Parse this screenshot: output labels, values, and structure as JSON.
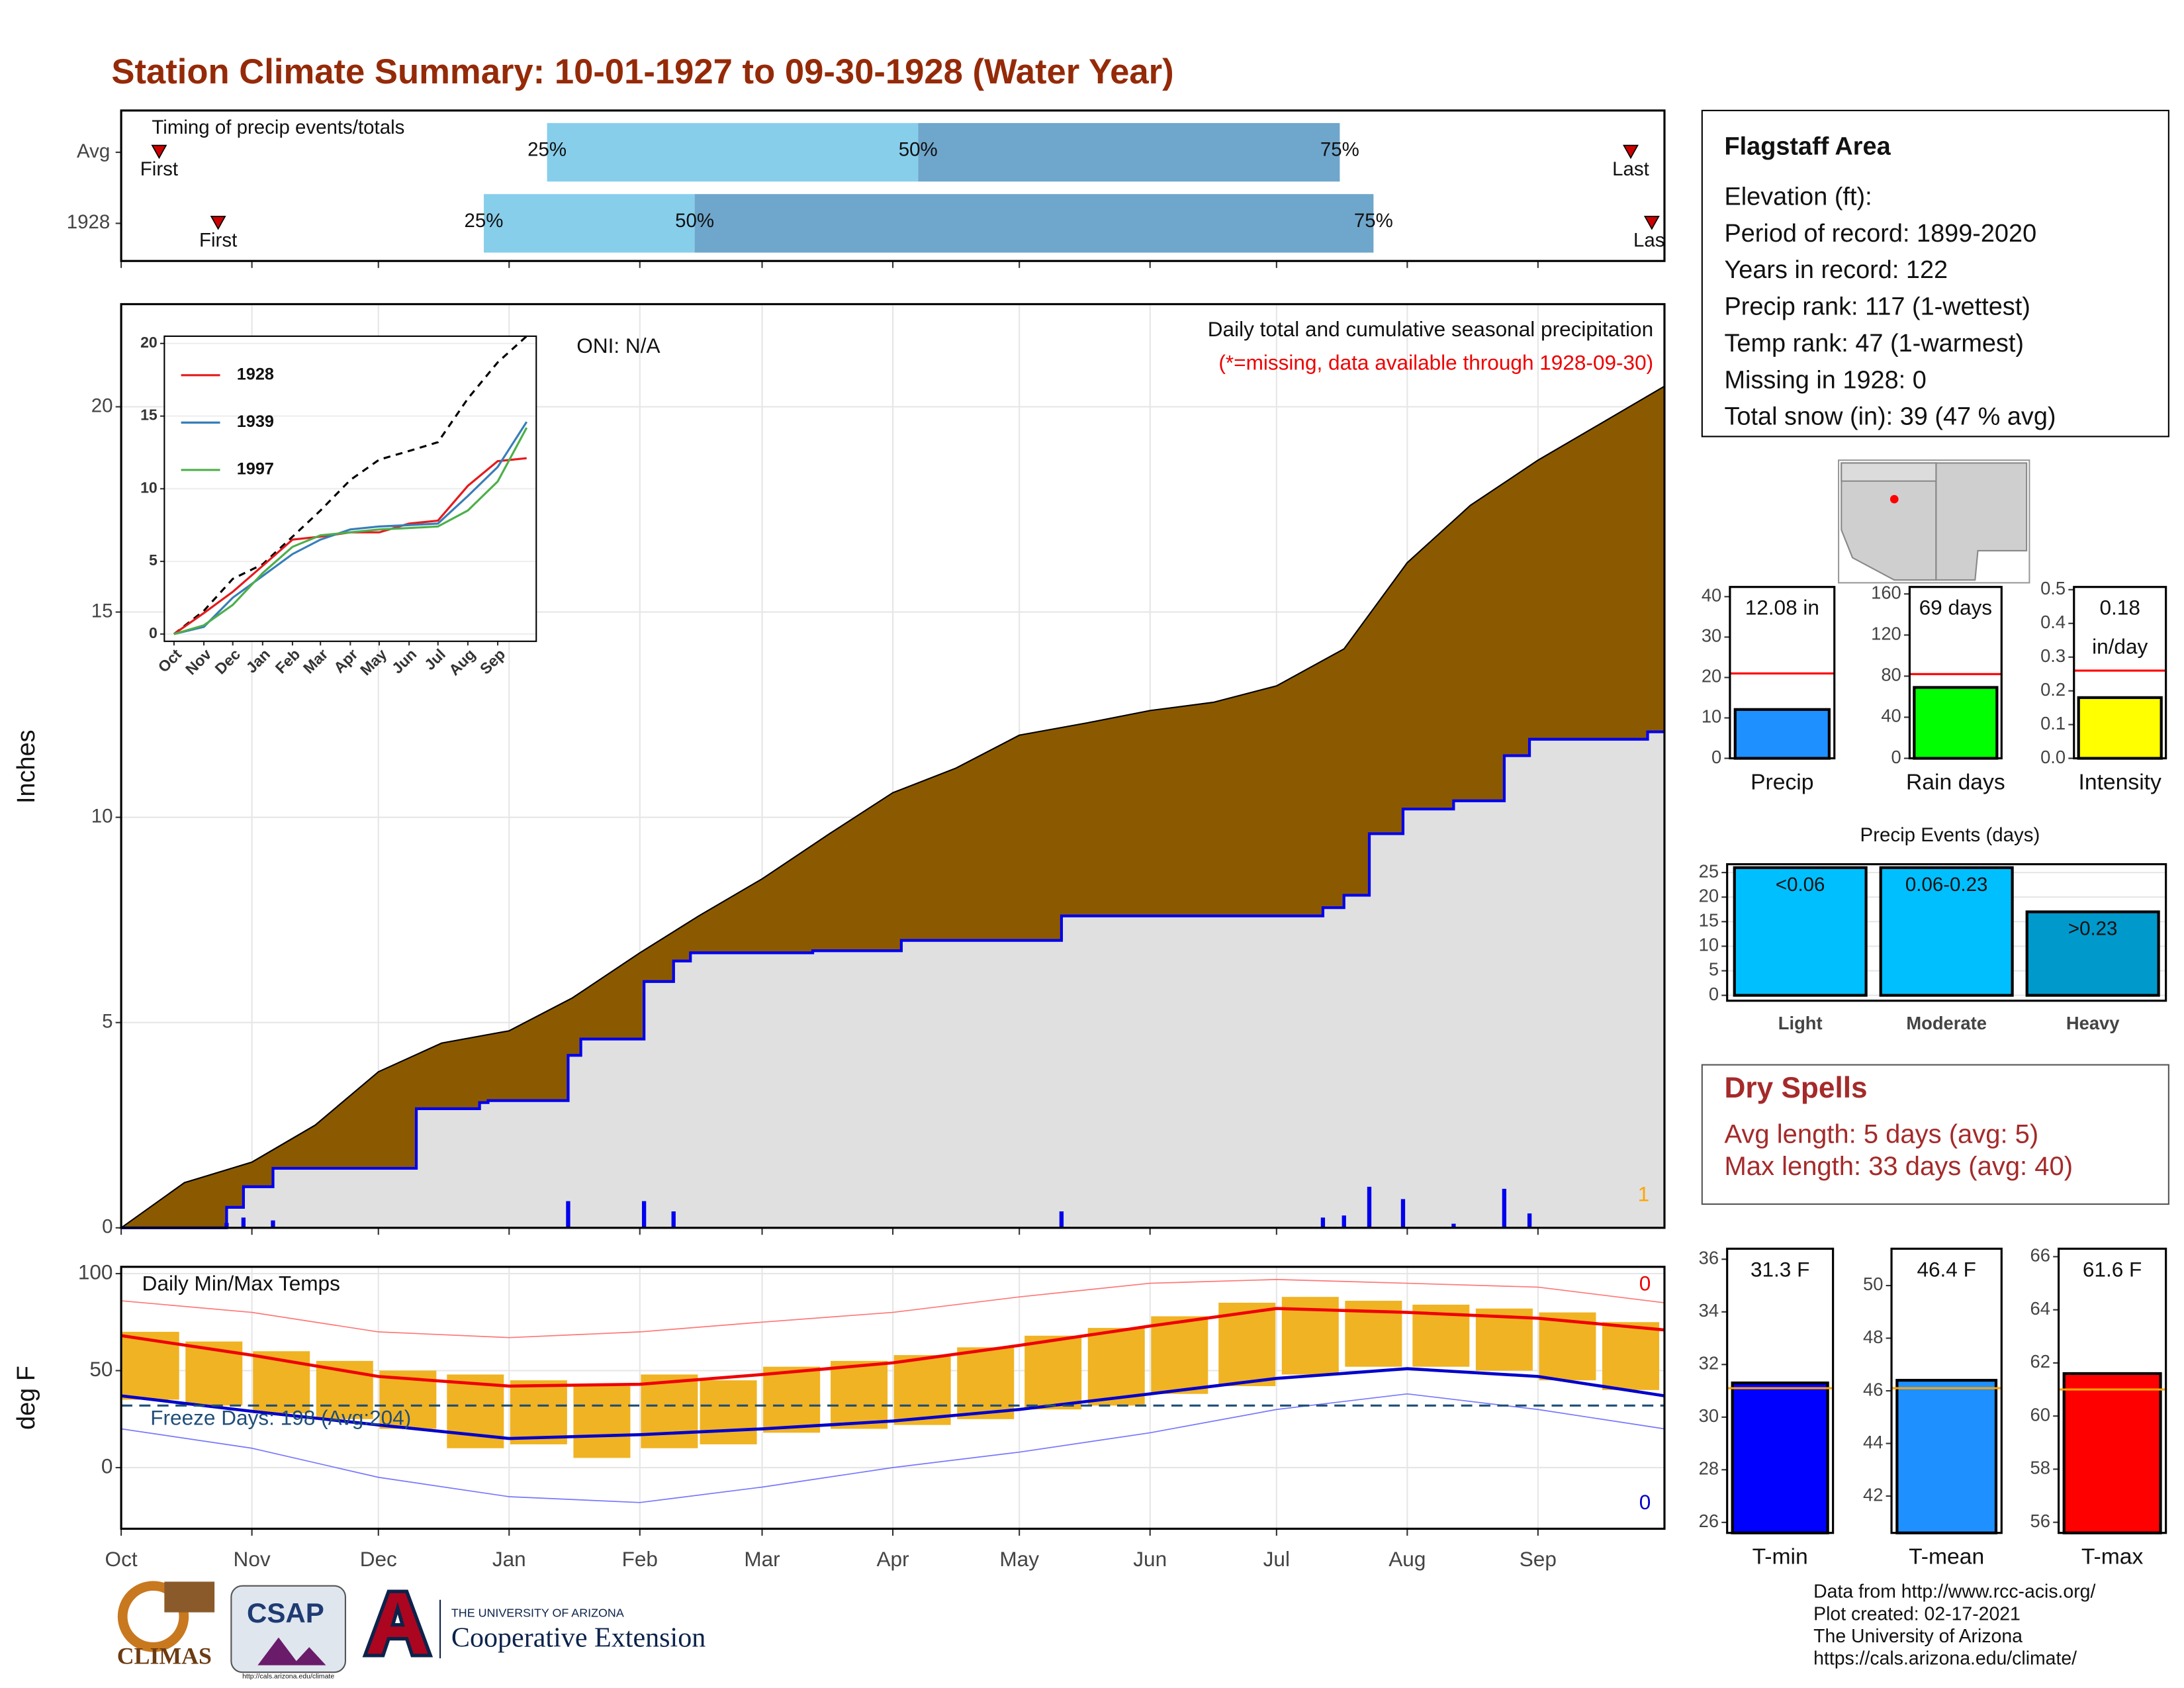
{
  "title": "Station Climate Summary: 10-01-1927 to 09-30-1928 (Water Year)",
  "chart_data": [
    {
      "type": "timeline",
      "title": "Timing of precip events/totals",
      "labels": {
        "first": "First",
        "last": "Last",
        "p25": "25%",
        "p50": "50%",
        "p75": "75%"
      },
      "rows": [
        {
          "name": "Avg",
          "first": 9,
          "p25": 101,
          "p50": 189,
          "p75": 289,
          "last": 358
        },
        {
          "name": "1928",
          "first": 23,
          "p25": 86,
          "p50": 136,
          "p75": 297,
          "last": 363
        }
      ],
      "xlim": [
        0,
        366
      ],
      "colors": {
        "lower": "#87ceeb",
        "upper": "#6fa6cc",
        "marker": "#cc0000"
      }
    },
    {
      "type": "area",
      "title": "Daily total and cumulative seasonal precipitation",
      "subtitle": "(*=missing, data available through 1928-09-30)",
      "note": "ONI: N/A",
      "corner_note": "1",
      "ylabel": "Inches",
      "xlim": [
        0,
        366
      ],
      "ylim": [
        0,
        22.5
      ],
      "yticks": [
        0,
        5,
        10,
        15,
        20
      ],
      "grid": true,
      "xticks": [
        {
          "value": 0,
          "label": "Oct"
        },
        {
          "value": 31,
          "label": "Nov"
        },
        {
          "value": 61,
          "label": "Dec"
        },
        {
          "value": 92,
          "label": "Jan"
        },
        {
          "value": 123,
          "label": "Feb"
        },
        {
          "value": 152,
          "label": "Mar"
        },
        {
          "value": 183,
          "label": "Apr"
        },
        {
          "value": 213,
          "label": "May"
        },
        {
          "value": 244,
          "label": "Jun"
        },
        {
          "value": 274,
          "label": "Jul"
        },
        {
          "value": 305,
          "label": "Aug"
        },
        {
          "value": 336,
          "label": "Sep"
        }
      ],
      "avg": {
        "color": "#8b5a00",
        "x": [
          0,
          15,
          31,
          46,
          61,
          76,
          92,
          107,
          123,
          137,
          152,
          168,
          183,
          198,
          213,
          229,
          244,
          259,
          274,
          290,
          305,
          320,
          336,
          351,
          366
        ],
        "values": [
          0,
          1.1,
          1.6,
          2.5,
          3.8,
          4.5,
          4.8,
          5.6,
          6.7,
          7.6,
          8.5,
          9.6,
          10.6,
          11.2,
          12.0,
          12.3,
          12.6,
          12.8,
          13.2,
          14.1,
          16.2,
          17.6,
          18.7,
          19.6,
          20.5
        ]
      },
      "observed": {
        "color": "#0000ee",
        "fill": "#e0e0e0",
        "x": [
          0,
          25,
          29,
          36,
          70,
          85,
          87,
          106,
          109,
          124,
          131,
          135,
          164,
          185,
          223,
          285,
          290,
          296,
          304,
          316,
          328,
          334,
          362,
          366
        ],
        "values": [
          0,
          0.5,
          1.0,
          1.45,
          2.9,
          3.05,
          3.1,
          4.2,
          4.6,
          6.0,
          6.5,
          6.7,
          6.75,
          7.0,
          7.6,
          7.8,
          8.1,
          9.6,
          10.2,
          10.4,
          11.5,
          11.9,
          12.08,
          12.08
        ]
      },
      "daily": {
        "color": "#0000ee",
        "x": [
          25,
          29,
          36,
          106,
          124,
          131,
          223,
          285,
          290,
          296,
          304,
          316,
          328,
          334
        ],
        "values": [
          0.12,
          0.25,
          0.18,
          0.65,
          0.65,
          0.4,
          0.4,
          0.25,
          0.3,
          1.0,
          0.7,
          0.1,
          0.95,
          0.35
        ]
      }
    },
    {
      "type": "line",
      "xlim": [
        -10,
        376
      ],
      "ylim": [
        -0.5,
        20.5
      ],
      "yticks": [
        0,
        5,
        10,
        15,
        20
      ],
      "xticks": [
        {
          "value": 0,
          "label": "Oct"
        },
        {
          "value": 31,
          "label": "Nov"
        },
        {
          "value": 61,
          "label": "Dec"
        },
        {
          "value": 92,
          "label": "Jan"
        },
        {
          "value": 123,
          "label": "Feb"
        },
        {
          "value": 152,
          "label": "Mar"
        },
        {
          "value": 183,
          "label": "Apr"
        },
        {
          "value": 213,
          "label": "May"
        },
        {
          "value": 244,
          "label": "Jun"
        },
        {
          "value": 274,
          "label": "Jul"
        },
        {
          "value": 305,
          "label": "Aug"
        },
        {
          "value": 336,
          "label": "Sep"
        }
      ],
      "x": [
        0,
        31,
        61,
        92,
        123,
        152,
        183,
        213,
        244,
        274,
        305,
        336,
        366
      ],
      "avg": [
        0,
        1.6,
        3.8,
        4.8,
        6.7,
        8.5,
        10.6,
        12.0,
        12.6,
        13.2,
        16.2,
        18.7,
        20.5
      ],
      "series": [
        {
          "name": "1928",
          "color": "#e41a1c",
          "values": [
            0,
            1.45,
            2.9,
            4.7,
            6.5,
            6.7,
            7.0,
            7.0,
            7.6,
            7.8,
            10.2,
            11.9,
            12.1
          ]
        },
        {
          "name": "1939",
          "color": "#377eb8",
          "values": [
            0,
            0.5,
            2.5,
            4.0,
            5.5,
            6.5,
            7.2,
            7.4,
            7.5,
            7.6,
            9.5,
            11.5,
            14.6
          ]
        },
        {
          "name": "1997",
          "color": "#4daf4a",
          "values": [
            0,
            0.6,
            2.0,
            4.2,
            6.0,
            6.8,
            7.0,
            7.2,
            7.3,
            7.4,
            8.5,
            10.5,
            14.2
          ]
        }
      ]
    },
    {
      "type": "range",
      "title": "Daily Min/Max Temps",
      "ylabel": "deg F",
      "freeze_label": "Freeze Days: 198 (Avg:204)",
      "freeze": 32,
      "record_high_count": 0,
      "record_low_count": 0,
      "xlim": [
        0,
        366
      ],
      "ylim": [
        -31.5,
        103.5
      ],
      "yticks": [
        0,
        50,
        100
      ],
      "grid": true,
      "xticks": [
        {
          "value": 0,
          "label": "Oct"
        },
        {
          "value": 31,
          "label": "Nov"
        },
        {
          "value": 61,
          "label": "Dec"
        },
        {
          "value": 92,
          "label": "Jan"
        },
        {
          "value": 123,
          "label": "Feb"
        },
        {
          "value": 152,
          "label": "Mar"
        },
        {
          "value": 183,
          "label": "Apr"
        },
        {
          "value": 213,
          "label": "May"
        },
        {
          "value": 244,
          "label": "Jun"
        },
        {
          "value": 274,
          "label": "Jul"
        },
        {
          "value": 305,
          "label": "Aug"
        },
        {
          "value": 336,
          "label": "Sep"
        }
      ],
      "x": [
        0,
        31,
        61,
        92,
        123,
        152,
        183,
        213,
        244,
        274,
        305,
        336,
        366
      ],
      "lines": [
        {
          "color": "#ff7777",
          "width": 0.8,
          "values": [
            86,
            80,
            70,
            67,
            70,
            75,
            80,
            88,
            95,
            97,
            95,
            93,
            85
          ]
        },
        {
          "color": "#ee0000",
          "width": 2.2,
          "values": [
            68,
            58,
            47,
            42,
            43,
            48,
            54,
            63,
            73,
            82,
            80,
            77,
            71
          ]
        },
        {
          "color": "#0000cc",
          "width": 2.2,
          "values": [
            37,
            29,
            22,
            15,
            17,
            20,
            24,
            30,
            38,
            46,
            51,
            47,
            37
          ]
        },
        {
          "color": "#7777ff",
          "width": 0.8,
          "values": [
            20,
            10,
            -5,
            -15,
            -18,
            -10,
            0,
            8,
            18,
            30,
            38,
            30,
            20
          ]
        }
      ],
      "daily": {
        "color": "#f0b323",
        "x": [
          7,
          22,
          38,
          53,
          68,
          84,
          99,
          114,
          130,
          144,
          159,
          175,
          190,
          205,
          221,
          236,
          251,
          267,
          282,
          297,
          313,
          328,
          343,
          358
        ],
        "low": [
          35,
          32,
          28,
          25,
          20,
          10,
          12,
          5,
          10,
          12,
          18,
          20,
          22,
          25,
          30,
          32,
          38,
          42,
          48,
          52,
          52,
          50,
          45,
          40
        ],
        "high": [
          70,
          65,
          60,
          55,
          50,
          48,
          45,
          42,
          48,
          45,
          52,
          55,
          58,
          62,
          68,
          72,
          78,
          85,
          88,
          86,
          84,
          82,
          80,
          75
        ]
      }
    },
    {
      "type": "bar",
      "categories": [
        "Precip"
      ],
      "values": [
        12.08
      ],
      "value_labels": [
        "12.08 in"
      ],
      "color": "#1e90ff",
      "reference": 21,
      "reference_color": "#ff0000",
      "ylim": [
        0,
        42.4
      ],
      "yticks": [
        0,
        10,
        20,
        30,
        40
      ]
    },
    {
      "type": "bar",
      "categories": [
        "Rain days"
      ],
      "values": [
        69
      ],
      "value_labels": [
        "69 days"
      ],
      "color": "#00ff00",
      "reference": 82,
      "reference_color": "#ff0000",
      "ylim": [
        0,
        166.8
      ],
      "yticks": [
        0,
        40,
        80,
        120,
        160
      ]
    },
    {
      "type": "bar",
      "categories": [
        "Intensity"
      ],
      "values": [
        0.18
      ],
      "value_labels": [
        "0.18"
      ],
      "unit": "in/day",
      "color": "#ffff00",
      "reference": 0.26,
      "reference_color": "#ff0000",
      "ylim": [
        0,
        0.508
      ],
      "yticks": [
        {
          "value": 0,
          "label": "0.0"
        },
        0.1,
        0.2,
        0.3,
        0.4,
        0.5
      ]
    },
    {
      "type": "bar",
      "title": "Precip Events (days)",
      "categories": [
        "Light",
        "Moderate",
        "Heavy"
      ],
      "ranges": [
        "<0.06",
        "0.06-0.23",
        ">0.23"
      ],
      "values": [
        26,
        26,
        17
      ],
      "colors": [
        "#00bfff",
        "#00bfff",
        "#0099cc"
      ],
      "grid": true,
      "ylim": [
        -1.1,
        26.7
      ],
      "yticks": [
        0,
        5,
        10,
        15,
        20,
        25
      ]
    },
    {
      "type": "bar",
      "categories": [
        "T-min"
      ],
      "values": [
        31.3
      ],
      "value_labels": [
        "31.3 F"
      ],
      "color": "#0000ff",
      "reference": 31.1,
      "reference_color": "#ffa500",
      "ylim": [
        25.6,
        36.4
      ],
      "yticks": [
        26,
        28,
        30,
        32,
        34,
        36
      ]
    },
    {
      "type": "bar",
      "categories": [
        "T-mean"
      ],
      "values": [
        46.4
      ],
      "value_labels": [
        "46.4 F"
      ],
      "color": "#1e90ff",
      "reference": 46.1,
      "reference_color": "#ffa500",
      "ylim": [
        40.6,
        51.4
      ],
      "yticks": [
        42,
        44,
        46,
        48,
        50
      ]
    },
    {
      "type": "bar",
      "categories": [
        "T-max"
      ],
      "values": [
        61.6
      ],
      "value_labels": [
        "61.6 F"
      ],
      "color": "#ff0000",
      "reference": 61.0,
      "reference_color": "#ffa500",
      "ylim": [
        55.6,
        66.3
      ],
      "yticks": [
        56,
        58,
        60,
        62,
        64,
        66
      ]
    }
  ],
  "info": {
    "title": "Flagstaff Area",
    "lines": [
      "Elevation (ft):",
      "Period of record: 1899-2020",
      "Years in record: 122",
      "Precip rank: 117 (1-wettest)",
      "Temp rank: 47 (1-warmest)",
      "Missing in 1928: 0",
      "Total snow (in): 39 (47 % avg)"
    ]
  },
  "dry_spells": {
    "title": "Dry Spells",
    "lines": [
      "Avg length: 5 days (avg: 5)",
      "Max length: 33 days (avg: 40)"
    ]
  },
  "footer": [
    "Data from http://www.rcc-acis.org/",
    "Plot created: 02-17-2021",
    "The University of Arizona",
    "https://cals.arizona.edu/climate/"
  ],
  "logos": {
    "climas": "CLIMAS",
    "csap": "CSAP",
    "csap_url": "http://cals.arizona.edu/climate",
    "ua": "THE UNIVERSITY OF ARIZONA",
    "coop": "Cooperative Extension"
  }
}
